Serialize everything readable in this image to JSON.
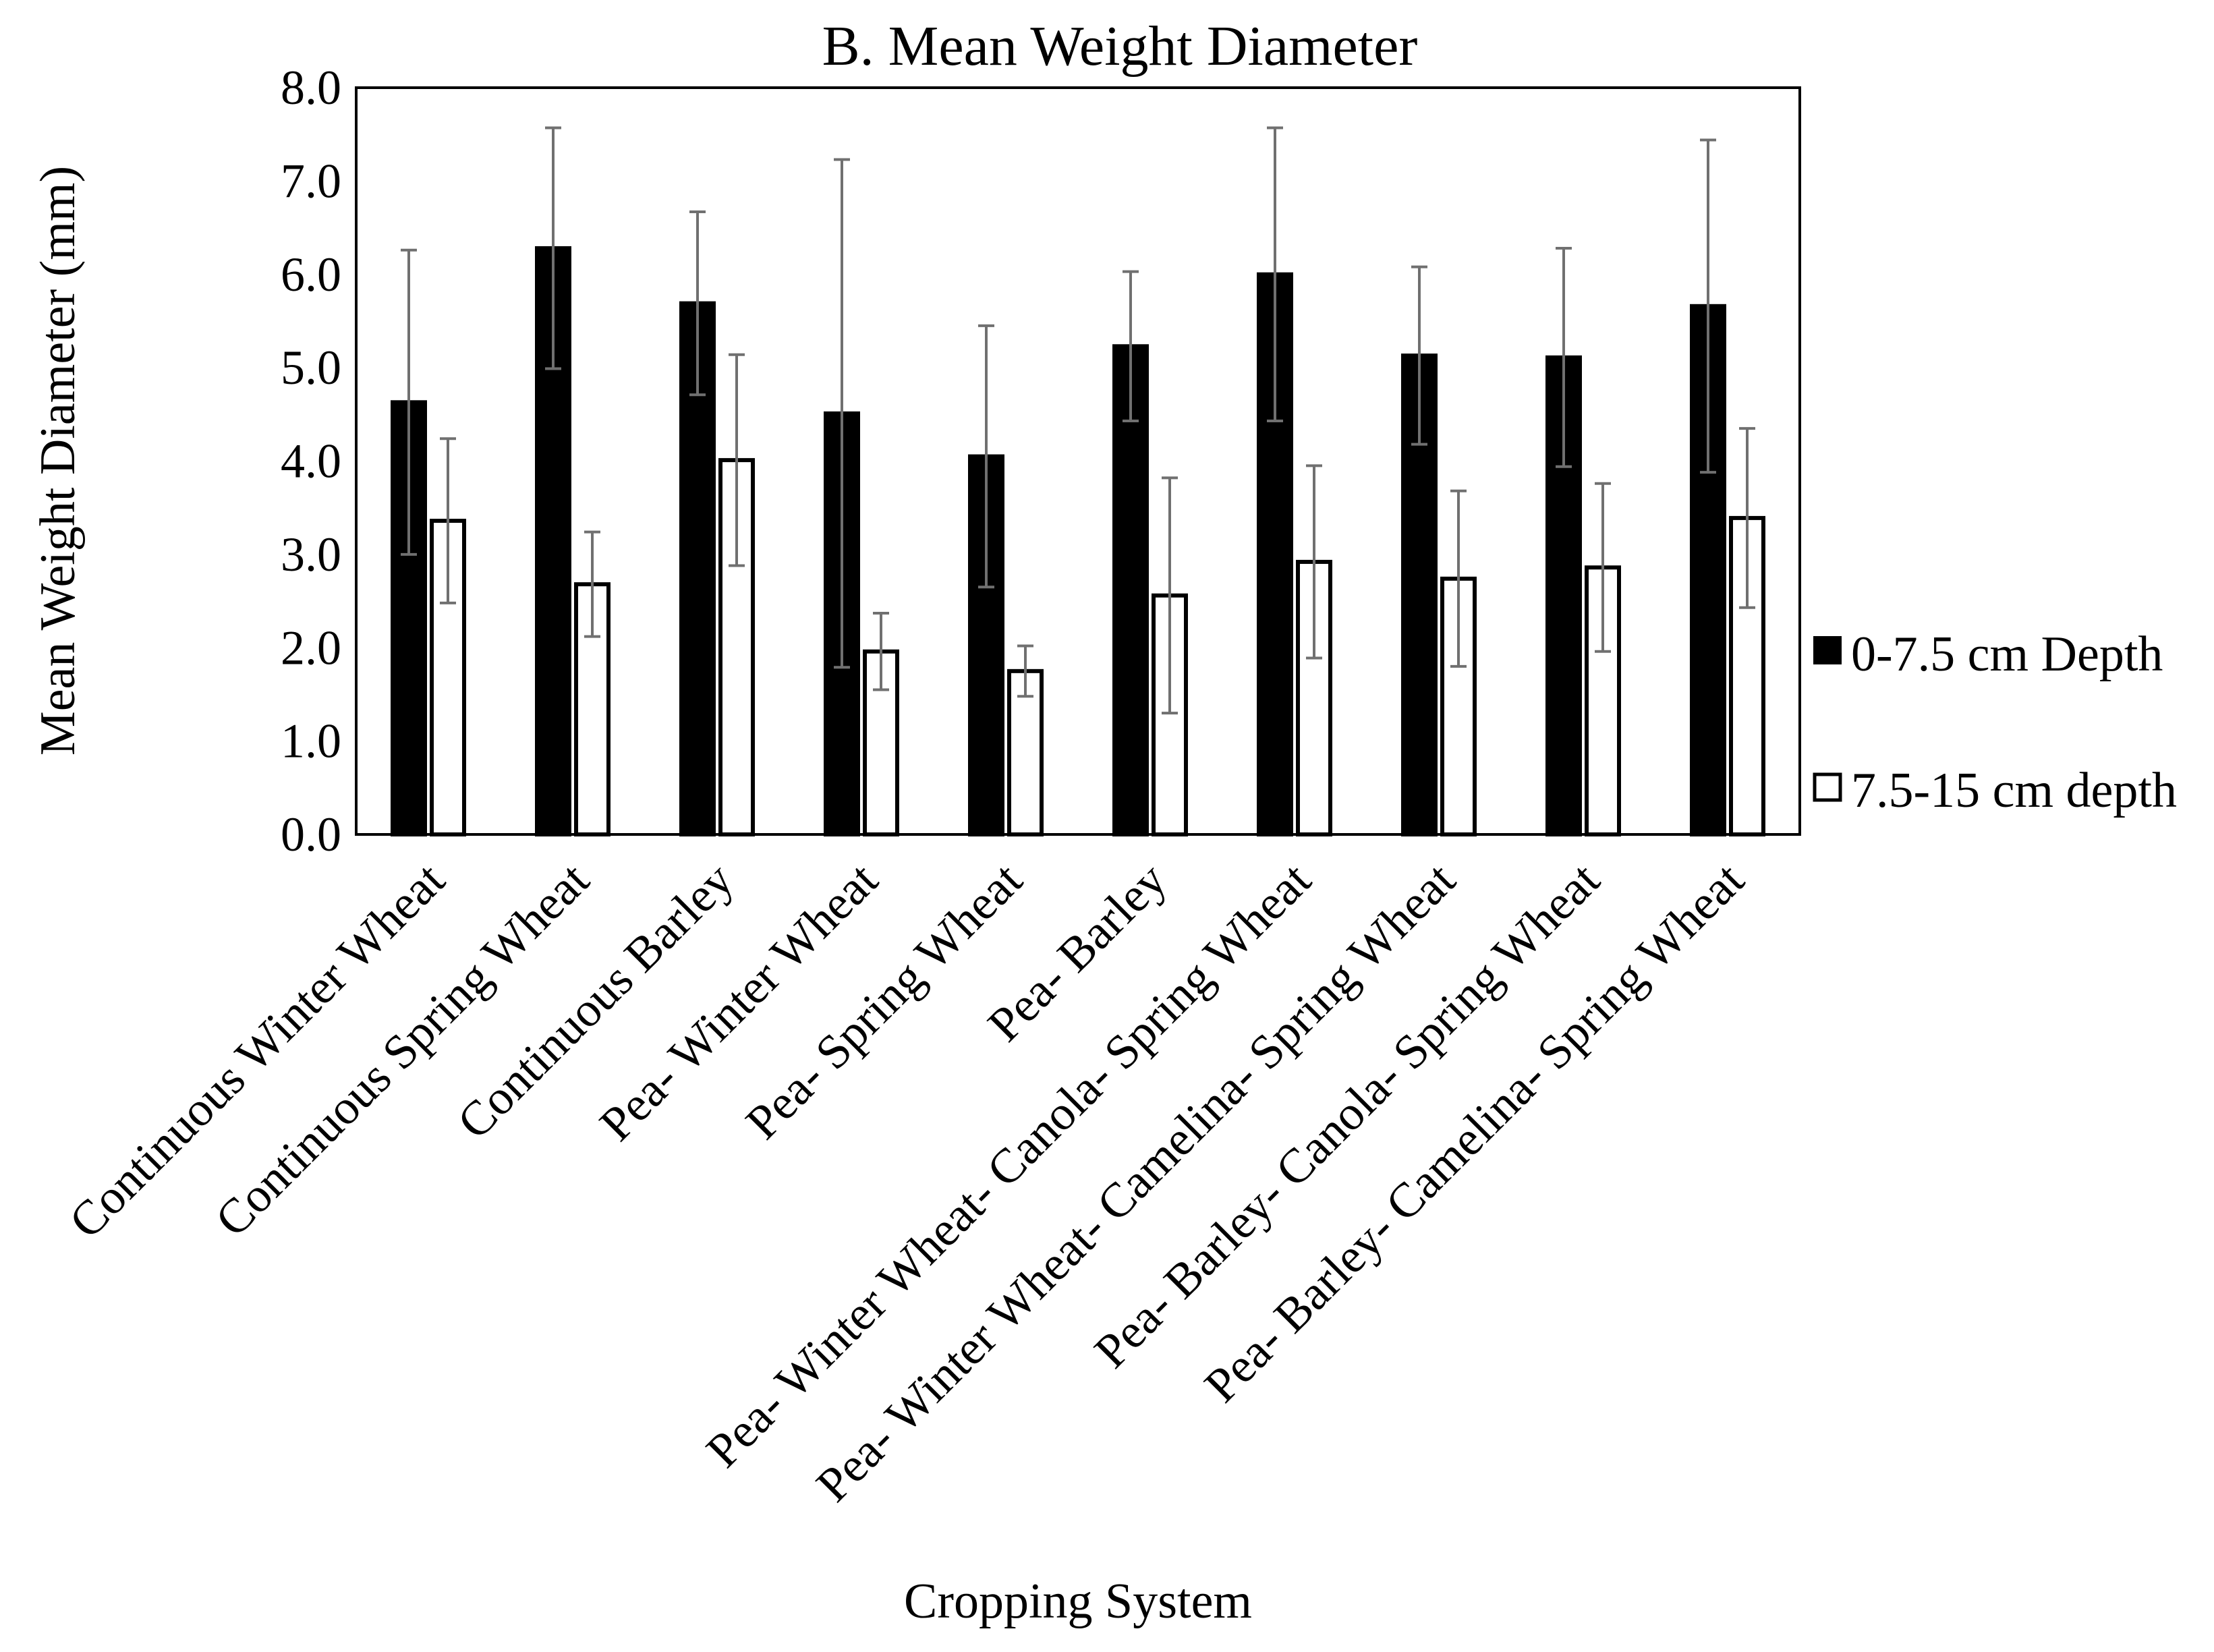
{
  "chart_data": {
    "type": "bar",
    "title": "B. Mean Weight Diameter",
    "xlabel": "Cropping System",
    "ylabel": "Mean Weight Diameter (mm)",
    "ylim": [
      0,
      8
    ],
    "yticks": [
      "0.0",
      "1.0",
      "2.0",
      "3.0",
      "4.0",
      "5.0",
      "6.0",
      "7.0",
      "8.0"
    ],
    "grid": false,
    "legend_position": "right",
    "categories": [
      "Continuous Winter Wheat",
      "Continuous Spring Wheat",
      "Continuous Barley",
      "Pea- Winter Wheat",
      "Pea- Spring Wheat",
      "Pea- Barley",
      "Pea- Winter Wheat- Canola- Spring Wheat",
      "Pea- Winter Wheat- Camelina- Spring Wheat",
      "Pea- Barley- Canola- Spring Wheat",
      "Pea- Barley- Camelina- Spring Wheat"
    ],
    "series": [
      {
        "name": "0-7.5 cm Depth",
        "color": "#000000",
        "values": [
          4.63,
          6.28,
          5.69,
          4.51,
          4.05,
          5.23,
          6.0,
          5.13,
          5.11,
          5.66
        ],
        "errors": [
          1.63,
          1.29,
          0.98,
          2.72,
          1.4,
          0.8,
          1.57,
          0.95,
          1.17,
          1.78
        ]
      },
      {
        "name": "7.5-15 cm depth",
        "color": "#ffffff",
        "values": [
          3.36,
          2.68,
          4.01,
          1.96,
          1.75,
          2.56,
          2.92,
          2.74,
          2.86,
          3.39
        ],
        "errors": [
          0.88,
          0.56,
          1.13,
          0.41,
          0.27,
          1.26,
          1.03,
          0.94,
          0.9,
          0.96
        ]
      }
    ]
  }
}
